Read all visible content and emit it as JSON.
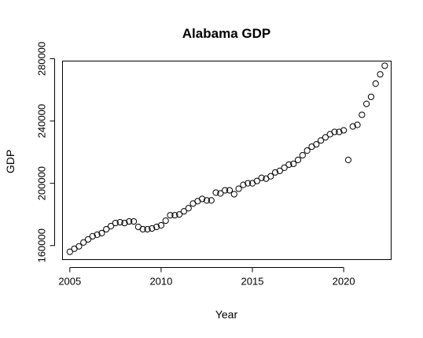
{
  "chart_data": {
    "type": "scatter",
    "title": "Alabama GDP",
    "xlabel": "Year",
    "ylabel": "GDP",
    "xlim": [
      2004.6,
      2022.6
    ],
    "ylim": [
      151000,
      278500
    ],
    "x_ticks": [
      2005,
      2010,
      2015,
      2020
    ],
    "x_tick_labels": [
      "2005",
      "2010",
      "2015",
      "2020"
    ],
    "y_ticks": [
      160000,
      200000,
      240000,
      280000
    ],
    "y_tick_labels": [
      "160000",
      "200000",
      "240000",
      "280000"
    ],
    "grid": false,
    "marker": "open-circle",
    "series": [
      {
        "x": [
          2005.0,
          2005.25,
          2005.5,
          2005.75,
          2006.0,
          2006.25,
          2006.5,
          2006.75,
          2007.0,
          2007.25,
          2007.5,
          2007.75,
          2008.0,
          2008.25,
          2008.5,
          2008.75,
          2009.0,
          2009.25,
          2009.5,
          2009.75,
          2010.0,
          2010.25,
          2010.5,
          2010.75,
          2011.0,
          2011.25,
          2011.5,
          2011.75,
          2012.0,
          2012.25,
          2012.5,
          2012.75,
          2013.0,
          2013.25,
          2013.5,
          2013.75,
          2014.0,
          2014.25,
          2014.5,
          2014.75,
          2015.0,
          2015.25,
          2015.5,
          2015.75,
          2016.0,
          2016.25,
          2016.5,
          2016.75,
          2017.0,
          2017.25,
          2017.5,
          2017.75,
          2018.0,
          2018.25,
          2018.5,
          2018.75,
          2019.0,
          2019.25,
          2019.5,
          2019.75,
          2020.0,
          2020.25,
          2020.5,
          2020.75,
          2021.0,
          2021.25,
          2021.5,
          2021.75,
          2022.0,
          2022.25
        ],
        "y": [
          156000,
          158000,
          159500,
          162000,
          164000,
          166000,
          167000,
          168000,
          170500,
          172500,
          174500,
          175000,
          174500,
          175500,
          175500,
          172000,
          170500,
          170500,
          171000,
          172000,
          173000,
          176000,
          179500,
          179500,
          180000,
          182000,
          184000,
          187000,
          188500,
          190000,
          189000,
          189000,
          194000,
          193500,
          195500,
          195500,
          193000,
          196500,
          199000,
          200000,
          200000,
          201500,
          203500,
          203000,
          204500,
          207000,
          208000,
          210000,
          212000,
          212500,
          215000,
          218000,
          221000,
          223500,
          225000,
          227500,
          229500,
          231500,
          233000,
          233000,
          234000,
          215000,
          236500,
          237500,
          244000,
          251000,
          255500,
          264000,
          270000,
          275500
        ]
      }
    ]
  }
}
